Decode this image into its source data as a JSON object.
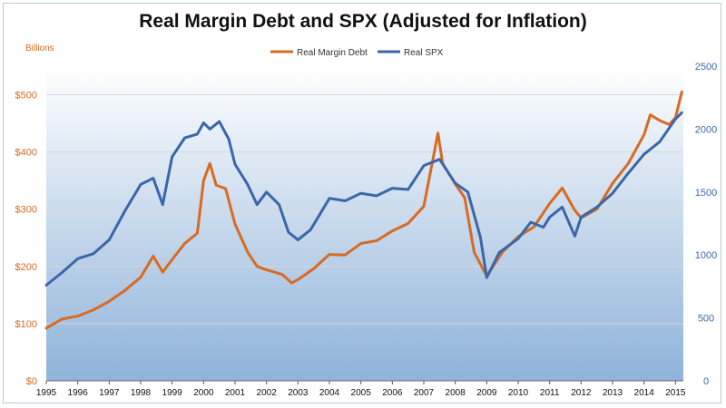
{
  "chart_data": {
    "type": "line",
    "title": "Real Margin Debt and SPX (Adjusted for Inflation)",
    "left_axis_label": "Billions",
    "x_range": [
      1995,
      2015.25
    ],
    "left_ylim": [
      0,
      550
    ],
    "right_ylim": [
      0,
      2500
    ],
    "x_ticks": [
      "1995",
      "1996",
      "1997",
      "1998",
      "1999",
      "2000",
      "2001",
      "2002",
      "2003",
      "2004",
      "2005",
      "2006",
      "2007",
      "2008",
      "2009",
      "2010",
      "2011",
      "2012",
      "2013",
      "2014",
      "2015"
    ],
    "left_ticks": [
      {
        "value": 0,
        "label": "$0"
      },
      {
        "value": 100,
        "label": "$100"
      },
      {
        "value": 200,
        "label": "$200"
      },
      {
        "value": 300,
        "label": "$300"
      },
      {
        "value": 400,
        "label": "$400"
      },
      {
        "value": 500,
        "label": "$500"
      }
    ],
    "right_ticks": [
      {
        "value": 0,
        "label": "0"
      },
      {
        "value": 500,
        "label": "500"
      },
      {
        "value": 1000,
        "label": "1000"
      },
      {
        "value": 1500,
        "label": "1500"
      },
      {
        "value": 2000,
        "label": "2000"
      },
      {
        "value": 2500,
        "label": "2500"
      }
    ],
    "legend": [
      "Real Margin Debt",
      "Real SPX"
    ],
    "colors": {
      "margin_debt": "#d96a22",
      "spx": "#3b67a8"
    },
    "series": [
      {
        "name": "Real Margin Debt",
        "axis": "left",
        "points": [
          [
            1995.0,
            92
          ],
          [
            1995.5,
            108
          ],
          [
            1996.0,
            113
          ],
          [
            1996.5,
            124
          ],
          [
            1997.0,
            139
          ],
          [
            1997.5,
            158
          ],
          [
            1998.0,
            181
          ],
          [
            1998.4,
            218
          ],
          [
            1998.7,
            190
          ],
          [
            1999.0,
            212
          ],
          [
            1999.4,
            240
          ],
          [
            1999.8,
            258
          ],
          [
            2000.0,
            350
          ],
          [
            2000.2,
            380
          ],
          [
            2000.4,
            342
          ],
          [
            2000.7,
            336
          ],
          [
            2001.0,
            274
          ],
          [
            2001.4,
            225
          ],
          [
            2001.7,
            200
          ],
          [
            2002.0,
            194
          ],
          [
            2002.5,
            186
          ],
          [
            2002.8,
            171
          ],
          [
            2003.0,
            177
          ],
          [
            2003.5,
            196
          ],
          [
            2004.0,
            221
          ],
          [
            2004.5,
            220
          ],
          [
            2005.0,
            240
          ],
          [
            2005.5,
            245
          ],
          [
            2006.0,
            262
          ],
          [
            2006.5,
            275
          ],
          [
            2007.0,
            305
          ],
          [
            2007.3,
            390
          ],
          [
            2007.45,
            433
          ],
          [
            2007.6,
            380
          ],
          [
            2008.0,
            344
          ],
          [
            2008.3,
            320
          ],
          [
            2008.6,
            225
          ],
          [
            2009.0,
            183
          ],
          [
            2009.5,
            225
          ],
          [
            2010.0,
            252
          ],
          [
            2010.5,
            269
          ],
          [
            2011.0,
            310
          ],
          [
            2011.4,
            337
          ],
          [
            2011.8,
            298
          ],
          [
            2012.0,
            285
          ],
          [
            2012.5,
            300
          ],
          [
            2013.0,
            345
          ],
          [
            2013.5,
            380
          ],
          [
            2014.0,
            430
          ],
          [
            2014.2,
            465
          ],
          [
            2014.5,
            455
          ],
          [
            2014.8,
            448
          ],
          [
            2015.0,
            460
          ],
          [
            2015.2,
            505
          ]
        ]
      },
      {
        "name": "Real SPX",
        "axis": "right",
        "points": [
          [
            1995.0,
            760
          ],
          [
            1995.5,
            860
          ],
          [
            1996.0,
            970
          ],
          [
            1996.5,
            1010
          ],
          [
            1997.0,
            1120
          ],
          [
            1997.5,
            1350
          ],
          [
            1998.0,
            1560
          ],
          [
            1998.4,
            1610
          ],
          [
            1998.7,
            1400
          ],
          [
            1999.0,
            1780
          ],
          [
            1999.4,
            1930
          ],
          [
            1999.8,
            1960
          ],
          [
            2000.0,
            2050
          ],
          [
            2000.2,
            2000
          ],
          [
            2000.5,
            2060
          ],
          [
            2000.8,
            1920
          ],
          [
            2001.0,
            1720
          ],
          [
            2001.4,
            1560
          ],
          [
            2001.7,
            1400
          ],
          [
            2002.0,
            1500
          ],
          [
            2002.4,
            1400
          ],
          [
            2002.7,
            1180
          ],
          [
            2003.0,
            1120
          ],
          [
            2003.4,
            1200
          ],
          [
            2004.0,
            1450
          ],
          [
            2004.5,
            1430
          ],
          [
            2005.0,
            1490
          ],
          [
            2005.5,
            1470
          ],
          [
            2006.0,
            1530
          ],
          [
            2006.5,
            1520
          ],
          [
            2007.0,
            1710
          ],
          [
            2007.5,
            1760
          ],
          [
            2008.0,
            1570
          ],
          [
            2008.4,
            1500
          ],
          [
            2008.8,
            1140
          ],
          [
            2009.0,
            820
          ],
          [
            2009.4,
            1020
          ],
          [
            2010.0,
            1130
          ],
          [
            2010.4,
            1260
          ],
          [
            2010.8,
            1220
          ],
          [
            2011.0,
            1300
          ],
          [
            2011.4,
            1380
          ],
          [
            2011.8,
            1150
          ],
          [
            2012.0,
            1300
          ],
          [
            2012.5,
            1380
          ],
          [
            2013.0,
            1490
          ],
          [
            2013.5,
            1650
          ],
          [
            2014.0,
            1800
          ],
          [
            2014.5,
            1900
          ],
          [
            2015.0,
            2080
          ],
          [
            2015.2,
            2130
          ]
        ]
      }
    ]
  }
}
